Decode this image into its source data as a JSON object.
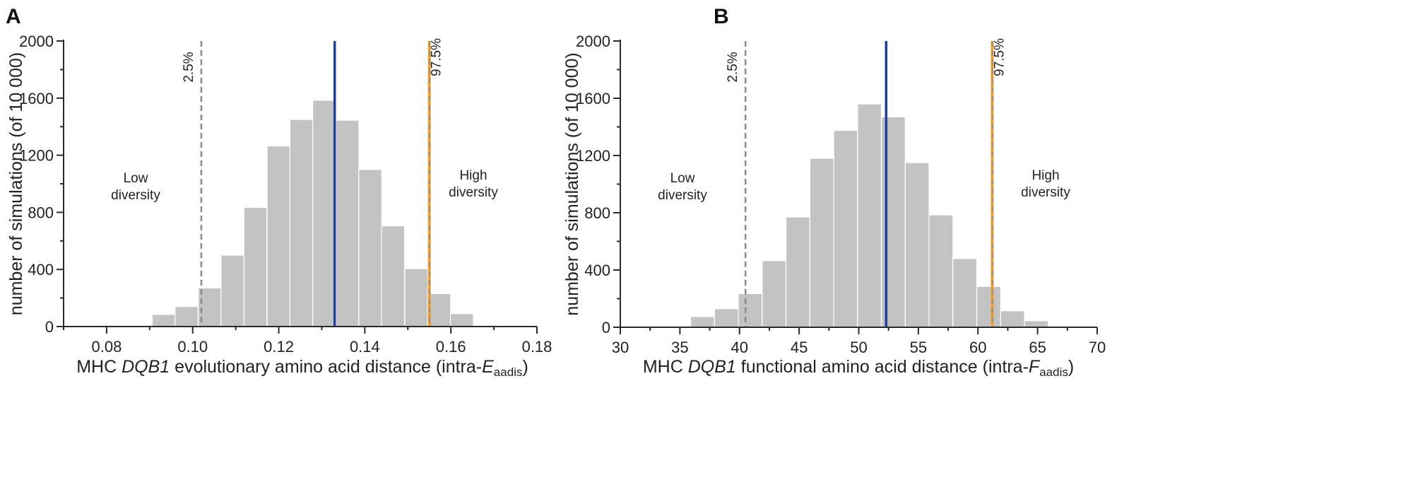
{
  "colors": {
    "bar": "#c3c3c3",
    "observed": "#1f3f9a",
    "ci_lower": "#8a8a8a",
    "ci_upper_dash": "#8a8a8a",
    "ci_upper_solid": "#f0a030"
  },
  "chart_data": [
    {
      "type": "bar",
      "panel": "A",
      "ylabel": "number of simulations (of 10 000)",
      "xlabel": {
        "pre": "MHC ",
        "gene": "DQB1",
        "mid": " evolutionary amino acid distance (intra-",
        "var": "E",
        "sub": "aadis",
        "post": ")"
      },
      "xlim": [
        0.07,
        0.18
      ],
      "ylim": [
        0,
        2000
      ],
      "xticks": [
        0.08,
        0.1,
        0.12,
        0.14,
        0.16,
        0.18
      ],
      "xtick_labels": [
        "0.08",
        "0.10",
        "0.12",
        "0.14",
        "0.16",
        "0.18"
      ],
      "yticks": [
        0,
        400,
        800,
        1200,
        1600,
        2000
      ],
      "ytick_labels": [
        "0",
        "400",
        "800",
        "1200",
        "1600",
        "2000"
      ],
      "bin_width": 0.00533,
      "bins_start": [
        0.0906,
        0.0959,
        0.1013,
        0.1066,
        0.1119,
        0.1173,
        0.1226,
        0.1279,
        0.1333,
        0.1386,
        0.1439,
        0.1493,
        0.1546,
        0.1599
      ],
      "values": [
        85,
        140,
        270,
        500,
        835,
        1265,
        1450,
        1585,
        1445,
        1100,
        705,
        405,
        230,
        90
      ],
      "ci_lower": 0.102,
      "ci_upper": 0.155,
      "observed": 0.133,
      "ci_lower_label": "2.5%",
      "ci_upper_label": "97.5%",
      "low_label": [
        "Low",
        "diversity"
      ],
      "high_label": [
        "High",
        "diversity"
      ]
    },
    {
      "type": "bar",
      "panel": "B",
      "ylabel": "number of simulations (of 10 000)",
      "xlabel": {
        "pre": "MHC ",
        "gene": "DQB1",
        "mid": " functional amino acid distance (intra-",
        "var": "F",
        "sub": "aadis",
        "post": ")"
      },
      "xlim": [
        30,
        70
      ],
      "ylim": [
        0,
        2000
      ],
      "xticks": [
        30,
        35,
        40,
        45,
        50,
        55,
        60,
        65,
        70
      ],
      "xtick_labels": [
        "30",
        "35",
        "40",
        "45",
        "50",
        "55",
        "60",
        "65",
        "70"
      ],
      "yticks": [
        0,
        400,
        800,
        1200,
        1600,
        2000
      ],
      "ytick_labels": [
        "0",
        "400",
        "800",
        "1200",
        "1600",
        "2000"
      ],
      "bin_width": 2.0,
      "bins_start": [
        35.9,
        37.9,
        39.9,
        41.9,
        43.9,
        45.9,
        47.9,
        49.9,
        51.9,
        53.9,
        55.9,
        57.9,
        59.9,
        61.9,
        63.9
      ],
      "values": [
        75,
        130,
        235,
        465,
        770,
        1180,
        1375,
        1560,
        1470,
        1150,
        785,
        480,
        285,
        115,
        45
      ],
      "ci_lower": 40.5,
      "ci_upper": 61.2,
      "observed": 52.3,
      "ci_lower_label": "2.5%",
      "ci_upper_label": "97.5%",
      "low_label": [
        "Low",
        "diversity"
      ],
      "high_label": [
        "High",
        "diversity"
      ]
    }
  ]
}
